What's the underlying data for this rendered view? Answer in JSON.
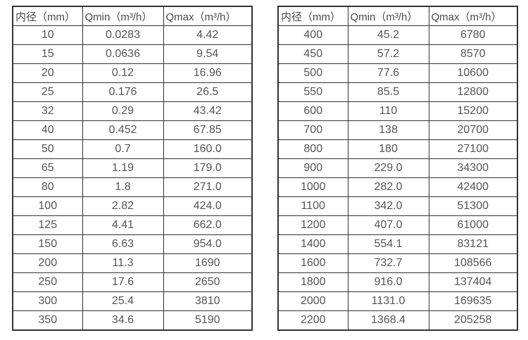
{
  "headers": [
    "内径（mm）",
    "Qmin（m³/h）",
    "Qmax（m³/h）"
  ],
  "tables": [
    {
      "id": "small-diameters",
      "rows": [
        [
          "10",
          "0.0283",
          "4.42"
        ],
        [
          "15",
          "0.0636",
          "9.54"
        ],
        [
          "20",
          "0.12",
          "16.96"
        ],
        [
          "25",
          "0.176",
          "26.5"
        ],
        [
          "32",
          "0.29",
          "43.42"
        ],
        [
          "40",
          "0.452",
          "67.85"
        ],
        [
          "50",
          "0.7",
          "160.0"
        ],
        [
          "65",
          "1.19",
          "179.0"
        ],
        [
          "80",
          "1.8",
          "271.0"
        ],
        [
          "100",
          "2.82",
          "424.0"
        ],
        [
          "125",
          "4.41",
          "662.0"
        ],
        [
          "150",
          "6.63",
          "954.0"
        ],
        [
          "200",
          "11.3",
          "1690"
        ],
        [
          "250",
          "17.6",
          "2650"
        ],
        [
          "300",
          "25.4",
          "3810"
        ],
        [
          "350",
          "34.6",
          "5190"
        ]
      ]
    },
    {
      "id": "large-diameters",
      "rows": [
        [
          "400",
          "45.2",
          "6780"
        ],
        [
          "450",
          "57.2",
          "8570"
        ],
        [
          "500",
          "77.6",
          "10600"
        ],
        [
          "550",
          "85.5",
          "12800"
        ],
        [
          "600",
          "110",
          "15200"
        ],
        [
          "700",
          "138",
          "20700"
        ],
        [
          "800",
          "180",
          "27100"
        ],
        [
          "900",
          "229.0",
          "34300"
        ],
        [
          "1000",
          "282.0",
          "42400"
        ],
        [
          "1100",
          "342.0",
          "51300"
        ],
        [
          "1200",
          "407.0",
          "61000"
        ],
        [
          "1400",
          "554.1",
          "83121"
        ],
        [
          "1600",
          "732.7",
          "108566"
        ],
        [
          "1800",
          "916.0",
          "137404"
        ],
        [
          "2000",
          "1131.0",
          "169635"
        ],
        [
          "2200",
          "1368.4",
          "205258"
        ]
      ]
    }
  ],
  "colors": {
    "border": "#333333",
    "header_text": "#4a4a4a",
    "cell_text": "#555555",
    "background": "#ffffff"
  }
}
